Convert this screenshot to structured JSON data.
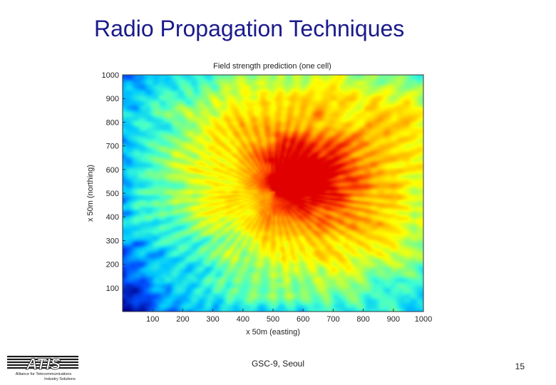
{
  "slide": {
    "title": "Radio Propagation Techniques",
    "footer": "GSC-9, Seoul",
    "page_number": "15"
  },
  "logo": {
    "text": "ATIS",
    "tagline_line1": "Alliance for Telecommunications",
    "tagline_line2": "Industry Solutions",
    "color": "#1a1a1a"
  },
  "chart_data": {
    "type": "heatmap",
    "title": "Field strength prediction (one cell)",
    "xlabel": "x 50m (easting)",
    "ylabel": "x 50m (northing)",
    "xlim": [
      0,
      1000
    ],
    "ylim": [
      0,
      1000
    ],
    "xticks": [
      100,
      200,
      300,
      400,
      500,
      600,
      700,
      800,
      900,
      1000
    ],
    "yticks": [
      100,
      200,
      300,
      400,
      500,
      600,
      700,
      800,
      900,
      1000
    ],
    "transmitter": {
      "x": 505,
      "y": 505
    },
    "colormap": [
      "#00008f",
      "#0050ff",
      "#00c8ff",
      "#40ffd0",
      "#a0ff60",
      "#ffff00",
      "#ffb400",
      "#ff5000",
      "#e00000"
    ],
    "grid": false,
    "legend": "none"
  }
}
